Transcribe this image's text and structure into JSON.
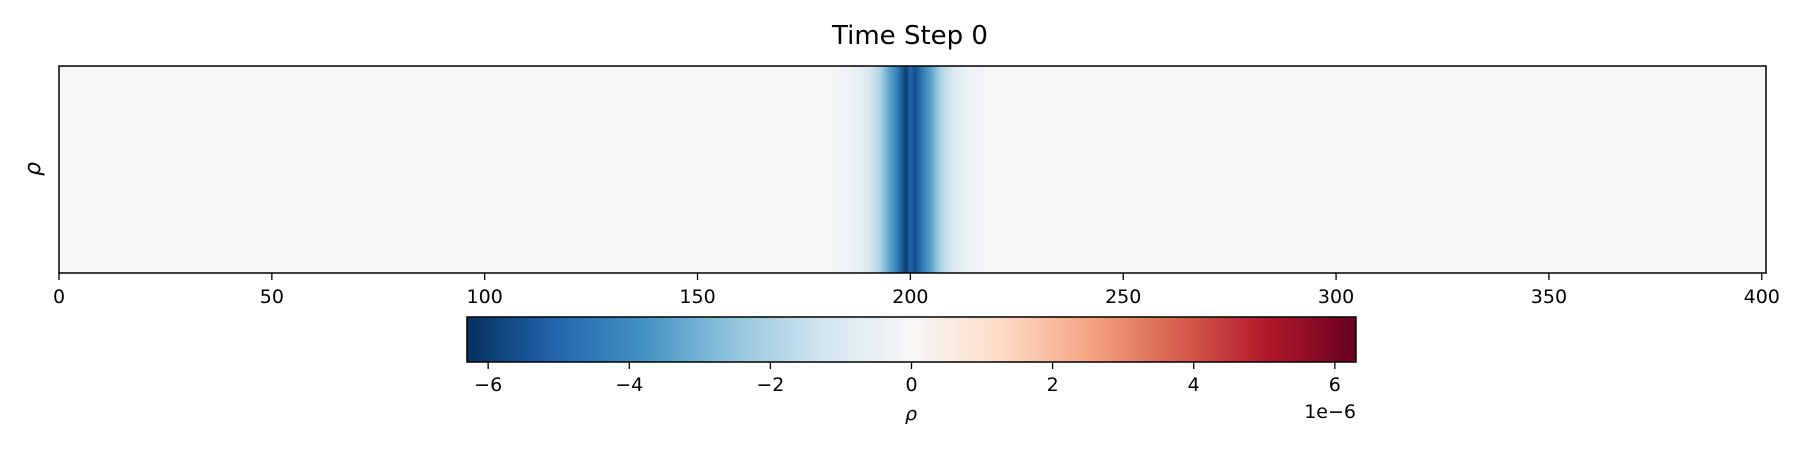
{
  "chart_data": {
    "type": "heatmap",
    "title": "Time Step 0",
    "ylabel": "ρ",
    "xlim": [
      0,
      401
    ],
    "x_ticks": [
      0,
      50,
      100,
      150,
      200,
      250,
      300,
      350,
      400
    ],
    "colormap": "RdBu_r",
    "colors": {
      "min": "#053061",
      "mid": "#f7f7f7",
      "max": "#67001f"
    },
    "field_profile": {
      "x": [
        180,
        186,
        190,
        193,
        195,
        197,
        199,
        200,
        201,
        203,
        205,
        207,
        210,
        214,
        220
      ],
      "values": [
        0.0,
        -3e-07,
        -9e-07,
        -2e-06,
        -3.3e-06,
        -4.4e-06,
        -6e-06,
        -5e-06,
        -5.6e-06,
        -4.4e-06,
        -3.3e-06,
        -2e-06,
        -9e-07,
        -3e-07,
        0.0
      ]
    },
    "colorbar": {
      "label": "ρ",
      "vmin": -6.3e-06,
      "vmax": 6.3e-06,
      "ticks": [
        -6,
        -4,
        -2,
        0,
        2,
        4,
        6
      ],
      "tick_labels": [
        "−6",
        "−4",
        "−2",
        "0",
        "2",
        "4",
        "6"
      ],
      "offset_text": "1e−6"
    }
  }
}
